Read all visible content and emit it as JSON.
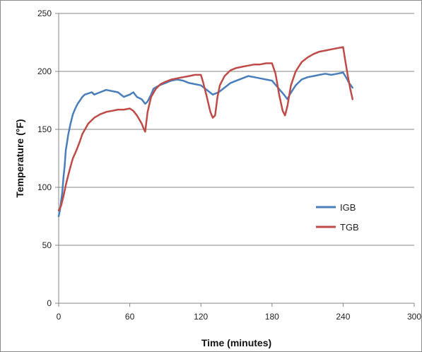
{
  "chart_data": {
    "type": "line",
    "title": "",
    "xlabel": "Time (minutes)",
    "ylabel": "Temperature  (°F)",
    "xlim": [
      0,
      300
    ],
    "ylim": [
      0,
      250
    ],
    "xticks": [
      0,
      60,
      120,
      180,
      240,
      300
    ],
    "yticks": [
      0,
      50,
      100,
      150,
      200,
      250
    ],
    "grid": "horizontal",
    "legend_position": "right-middle",
    "series": [
      {
        "name": "IGB",
        "color": "#4a7ebb",
        "x": [
          0,
          1,
          2,
          3,
          4,
          5,
          6,
          7,
          8,
          9,
          10,
          12,
          14,
          16,
          18,
          20,
          22,
          25,
          28,
          30,
          35,
          40,
          45,
          50,
          55,
          60,
          63,
          66,
          70,
          73,
          75,
          78,
          80,
          85,
          90,
          95,
          100,
          105,
          110,
          115,
          120,
          125,
          130,
          135,
          140,
          145,
          150,
          155,
          160,
          165,
          170,
          175,
          180,
          185,
          190,
          193,
          195,
          200,
          205,
          210,
          215,
          220,
          225,
          230,
          235,
          240,
          243,
          245,
          248
        ],
        "y": [
          75,
          80,
          88,
          95,
          108,
          118,
          132,
          138,
          145,
          150,
          155,
          163,
          168,
          172,
          175,
          178,
          180,
          181,
          182,
          180,
          182,
          184,
          183,
          182,
          178,
          180,
          182,
          178,
          176,
          172,
          174,
          180,
          185,
          188,
          190,
          192,
          193,
          192,
          190,
          189,
          188,
          184,
          180,
          182,
          186,
          190,
          192,
          194,
          196,
          195,
          194,
          193,
          192,
          186,
          180,
          176,
          180,
          188,
          193,
          195,
          196,
          197,
          198,
          197,
          198,
          199,
          194,
          190,
          186
        ]
      },
      {
        "name": "TGB",
        "color": "#be4b48",
        "x": [
          0,
          2,
          4,
          6,
          8,
          10,
          12,
          15,
          18,
          20,
          25,
          30,
          35,
          40,
          45,
          50,
          55,
          60,
          63,
          66,
          70,
          72,
          73,
          75,
          78,
          82,
          86,
          90,
          95,
          100,
          105,
          110,
          115,
          120,
          122,
          125,
          128,
          130,
          132,
          134,
          136,
          140,
          145,
          150,
          155,
          160,
          165,
          170,
          175,
          180,
          183,
          186,
          189,
          191,
          193,
          196,
          200,
          205,
          210,
          215,
          220,
          225,
          230,
          235,
          240,
          242,
          244,
          246,
          248
        ],
        "y": [
          80,
          84,
          92,
          102,
          110,
          118,
          125,
          132,
          140,
          146,
          155,
          160,
          163,
          165,
          166,
          167,
          167,
          168,
          166,
          162,
          155,
          150,
          148,
          165,
          178,
          185,
          189,
          191,
          193,
          194,
          195,
          196,
          197,
          197,
          190,
          178,
          165,
          160,
          162,
          178,
          188,
          196,
          201,
          203,
          204,
          205,
          206,
          206,
          207,
          207,
          198,
          180,
          166,
          162,
          170,
          188,
          200,
          208,
          212,
          215,
          217,
          218,
          219,
          220,
          221,
          208,
          196,
          185,
          176
        ]
      }
    ]
  }
}
